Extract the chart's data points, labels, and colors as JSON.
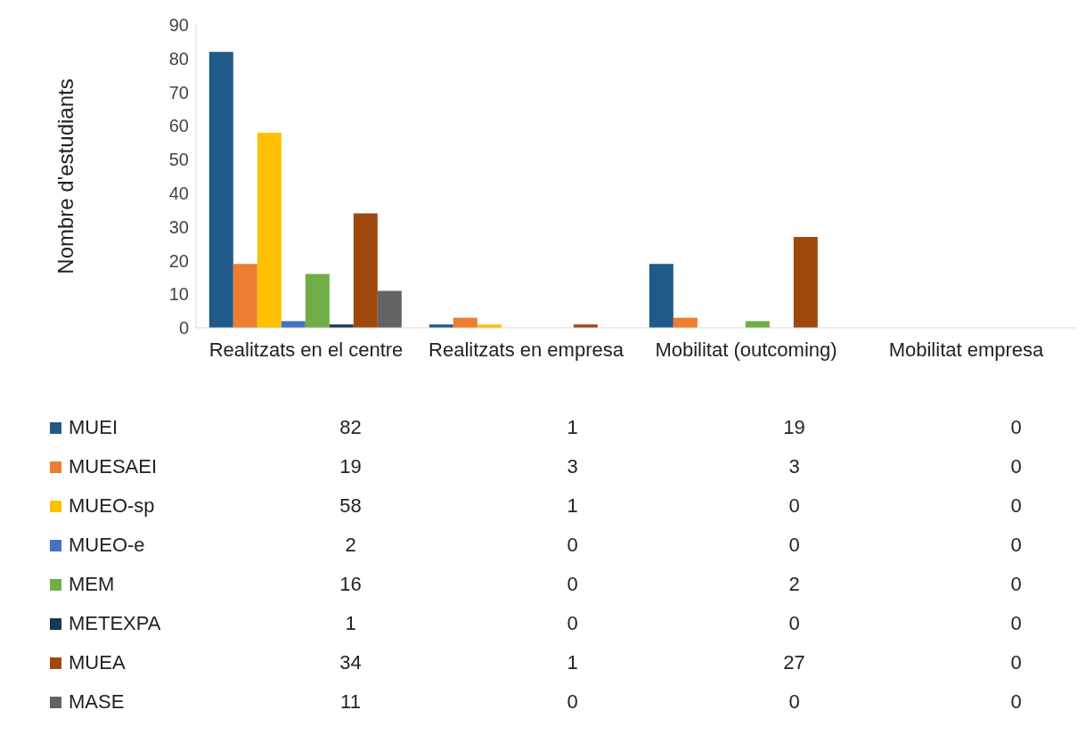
{
  "chart_data": {
    "type": "bar",
    "ylabel": "Nombre d'estudiants",
    "categories": [
      "Realitzats en el centre",
      "Realitzats en empresa",
      "Mobilitat (outcoming)",
      "Mobilitat empresa"
    ],
    "series": [
      {
        "name": "MUEI",
        "color": "#1f5a8a",
        "values": [
          82,
          1,
          19,
          0
        ]
      },
      {
        "name": "MUESAEI",
        "color": "#ed7d31",
        "values": [
          19,
          3,
          3,
          0
        ]
      },
      {
        "name": "MUEO-sp",
        "color": "#ffc000",
        "values": [
          58,
          1,
          0,
          0
        ]
      },
      {
        "name": "MUEO-e",
        "color": "#4472c4",
        "values": [
          2,
          0,
          0,
          0
        ]
      },
      {
        "name": "MEM",
        "color": "#70ad47",
        "values": [
          16,
          0,
          2,
          0
        ]
      },
      {
        "name": "METEXPA",
        "color": "#1a3650",
        "values": [
          1,
          0,
          0,
          0
        ]
      },
      {
        "name": "MUEA",
        "color": "#9e480e",
        "values": [
          34,
          1,
          27,
          0
        ]
      },
      {
        "name": "MASE",
        "color": "#636363",
        "values": [
          11,
          0,
          0,
          0
        ]
      }
    ],
    "ylim": [
      0,
      90
    ],
    "yticks": [
      0,
      10,
      20,
      30,
      40,
      50,
      60,
      70,
      80,
      90
    ],
    "data_labels": true,
    "legend": "bottom left",
    "grid": false
  }
}
